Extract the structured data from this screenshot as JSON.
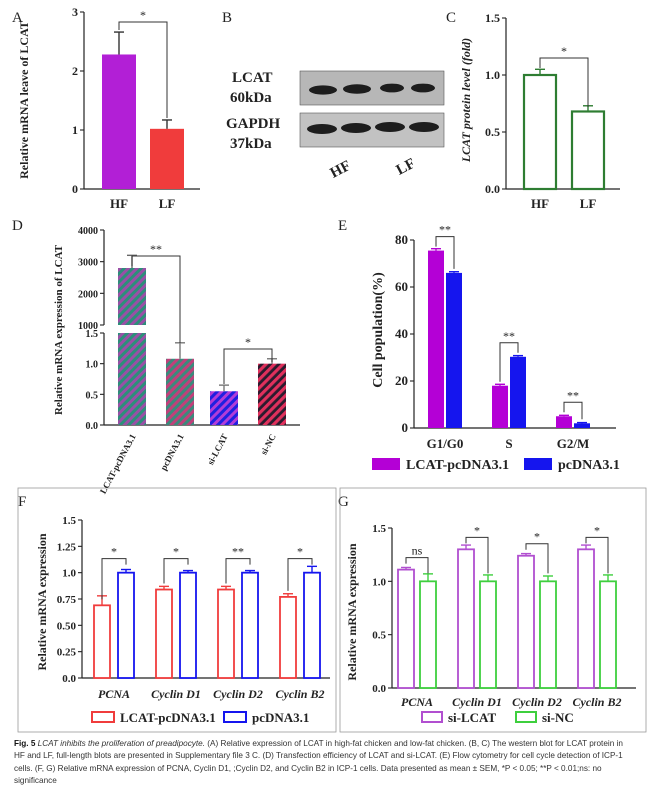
{
  "panel_letters": [
    "A",
    "B",
    "C",
    "D",
    "E",
    "F",
    "G"
  ],
  "blot": {
    "label_lcat": "LCAT",
    "label_lcat_kda": "60kDa",
    "label_gapdh": "GAPDH",
    "label_gapdh_kda": "37kDa",
    "lane_hf": "HF",
    "lane_lf": "LF",
    "supplement_ref": "Supplementary file 3 C"
  },
  "caption": {
    "lead": "Fig. 5",
    "title": "LCAT inhibits the proliferation of preadipocyte.",
    "body": "(A) Relative expression of LCAT in high-fat chicken and low-fat chicken. (B, C) The western blot for LCAT protein in HF and LF, full-length blots are presented in Supplementary file 3 C. (D) Transfection efficiency of LCAT and si-LCAT. (E) Flow cytometry for cell cycle detection of ICP-1 cells. (F, G) Relative mRNA expression of PCNA, Cyclin D1, ;Cyclin D2, and Cyclin B2 in ICP-1 cells. Data presented as mean ± SEM, *P < 0.05; **P < 0.01;ns: no significance"
  },
  "colors": {
    "purple": "#b21fd6",
    "red": "#f03c3c",
    "green": "#2e7d32",
    "blue": "#1515ee",
    "teal": "#2c8f7a",
    "pink": "#d83a6a",
    "magenta": "#b400d6",
    "violet": "#b14fd0",
    "lime": "#3ecf3e"
  },
  "chart_data": [
    {
      "id": "A",
      "type": "bar",
      "categories": [
        "HF",
        "LF"
      ],
      "values": [
        2.28,
        1.02
      ],
      "errors": [
        0.38,
        0.15
      ],
      "ylabel": "Relative mRNA leave of LCAT",
      "ylim": [
        0,
        3
      ],
      "yticks": [
        0,
        1,
        2,
        3
      ],
      "significance": [
        {
          "pair": [
            "HF",
            "LF"
          ],
          "label": "*"
        }
      ]
    },
    {
      "id": "C",
      "type": "bar",
      "categories": [
        "HF",
        "LF"
      ],
      "values": [
        1.0,
        0.68
      ],
      "errors": [
        0.05,
        0.05
      ],
      "ylabel": "LCAT protein level (fold)",
      "ylim": [
        0,
        1.5
      ],
      "yticks": [
        "0.0",
        "0.5",
        "1.0",
        "1.5"
      ],
      "significance": [
        {
          "pair": [
            "HF",
            "LF"
          ],
          "label": "*"
        }
      ]
    },
    {
      "id": "D",
      "type": "bar",
      "categories": [
        "LCAT-pcDNA3.1",
        "pcDNA3.1",
        "si-LCAT",
        "si-NC"
      ],
      "values": [
        2800,
        1.08,
        0.55,
        1.0
      ],
      "errors": [
        400,
        0.26,
        0.1,
        0.08
      ],
      "ylabel": "Relative mRNA expression of LCAT",
      "y_axis": "broken",
      "ylim_lower": [
        0,
        1.5
      ],
      "ylim_upper": [
        1000,
        4000
      ],
      "yticks_lower": [
        "0.0",
        "0.5",
        "1.0",
        "1.5"
      ],
      "yticks_upper": [
        "1000",
        "2000",
        "3000",
        "4000"
      ],
      "significance": [
        {
          "pair": [
            "LCAT-pcDNA3.1",
            "pcDNA3.1"
          ],
          "label": "**"
        },
        {
          "pair": [
            "si-LCAT",
            "si-NC"
          ],
          "label": "*"
        }
      ]
    },
    {
      "id": "E",
      "type": "bar",
      "categories": [
        "G1/G0",
        "S",
        "G2/M"
      ],
      "series": [
        {
          "name": "LCAT-pcDNA3.1",
          "values": [
            75.5,
            18,
            5
          ],
          "errors": [
            0.8,
            0.6,
            0.4
          ]
        },
        {
          "name": "pcDNA3.1",
          "values": [
            66,
            30.3,
            2
          ],
          "errors": [
            0.5,
            0.5,
            0.3
          ]
        }
      ],
      "ylabel": "Cell population(%)",
      "ylim": [
        0,
        80
      ],
      "yticks": [
        0,
        20,
        40,
        60,
        80
      ],
      "significance": [
        "**",
        "**",
        "**"
      ]
    },
    {
      "id": "F",
      "type": "bar",
      "categories": [
        "PCNA",
        "Cyclin D1",
        "Cyclin D2",
        "Cyclin B2"
      ],
      "series": [
        {
          "name": "LCAT-pcDNA3.1",
          "values": [
            0.69,
            0.84,
            0.84,
            0.77
          ],
          "errors": [
            0.09,
            0.03,
            0.03,
            0.03
          ]
        },
        {
          "name": "pcDNA3.1",
          "values": [
            1.0,
            1.0,
            1.0,
            1.0
          ],
          "errors": [
            0.03,
            0.02,
            0.02,
            0.06
          ]
        }
      ],
      "ylabel": "Relative mRNA expression",
      "ylim": [
        0,
        1.5
      ],
      "yticks": [
        "0.0",
        "0.25",
        "0.50",
        "0.75",
        "1.0",
        "1.25",
        "1.5"
      ],
      "significance": [
        "*",
        "*",
        "**",
        "*"
      ]
    },
    {
      "id": "G",
      "type": "bar",
      "categories": [
        "PCNA",
        "Cyclin D1",
        "Cyclin D2",
        "Cyclin B2"
      ],
      "series": [
        {
          "name": "si-LCAT",
          "values": [
            1.11,
            1.3,
            1.24,
            1.3
          ],
          "errors": [
            0.02,
            0.04,
            0.02,
            0.04
          ]
        },
        {
          "name": "si-NC",
          "values": [
            1.0,
            1.0,
            1.0,
            1.0
          ],
          "errors": [
            0.07,
            0.06,
            0.05,
            0.06
          ]
        }
      ],
      "ylabel": "Relative mRNA expression",
      "ylim": [
        0,
        1.5
      ],
      "yticks": [
        "0.0",
        "0.5",
        "1.0",
        "1.5"
      ],
      "significance": [
        "ns",
        "*",
        "*",
        "*"
      ]
    }
  ]
}
